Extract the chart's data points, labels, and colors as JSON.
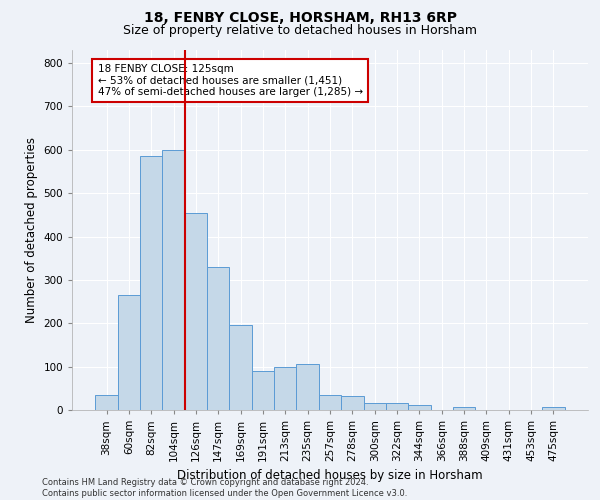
{
  "title": "18, FENBY CLOSE, HORSHAM, RH13 6RP",
  "subtitle": "Size of property relative to detached houses in Horsham",
  "xlabel": "Distribution of detached houses by size in Horsham",
  "ylabel": "Number of detached properties",
  "footer_line1": "Contains HM Land Registry data © Crown copyright and database right 2024.",
  "footer_line2": "Contains public sector information licensed under the Open Government Licence v3.0.",
  "categories": [
    "38sqm",
    "60sqm",
    "82sqm",
    "104sqm",
    "126sqm",
    "147sqm",
    "169sqm",
    "191sqm",
    "213sqm",
    "235sqm",
    "257sqm",
    "278sqm",
    "300sqm",
    "322sqm",
    "344sqm",
    "366sqm",
    "388sqm",
    "409sqm",
    "431sqm",
    "453sqm",
    "475sqm"
  ],
  "values": [
    35,
    265,
    585,
    600,
    455,
    330,
    195,
    90,
    100,
    105,
    35,
    32,
    17,
    17,
    12,
    0,
    7,
    0,
    0,
    0,
    7
  ],
  "bar_color": "#c5d8e8",
  "bar_edge_color": "#5b9bd5",
  "red_line_index": 4,
  "annotation_text": "18 FENBY CLOSE: 125sqm\n← 53% of detached houses are smaller (1,451)\n47% of semi-detached houses are larger (1,285) →",
  "annotation_box_color": "#ffffff",
  "annotation_box_edge": "#cc0000",
  "ylim": [
    0,
    830
  ],
  "yticks": [
    0,
    100,
    200,
    300,
    400,
    500,
    600,
    700,
    800
  ],
  "background_color": "#eef2f8",
  "grid_color": "#ffffff",
  "title_fontsize": 10,
  "subtitle_fontsize": 9,
  "axis_label_fontsize": 8.5,
  "tick_fontsize": 7.5,
  "annotation_fontsize": 7.5,
  "footer_fontsize": 6
}
